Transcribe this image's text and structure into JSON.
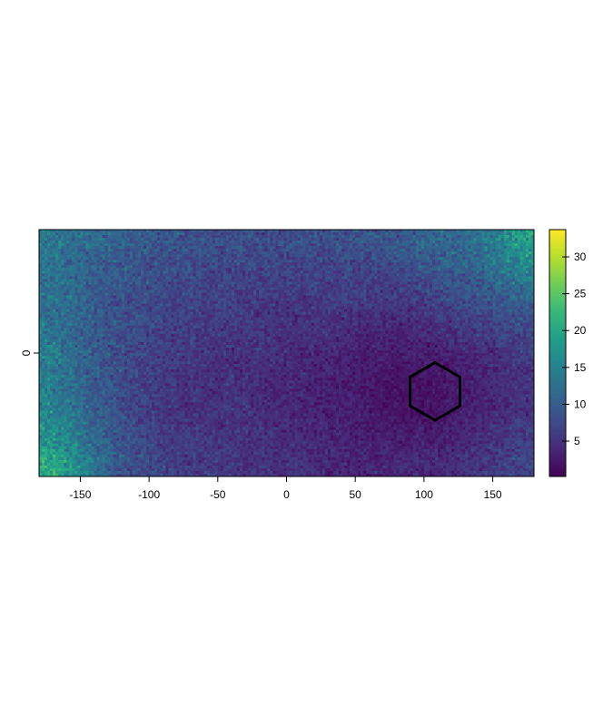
{
  "chart_data": {
    "type": "heatmap",
    "title": "",
    "xlabel": "",
    "ylabel": "",
    "xlim": [
      -180,
      180
    ],
    "ylim": [
      -90,
      90
    ],
    "zlim": [
      0.2,
      33.7
    ],
    "colormap": "viridis",
    "x_ticks": [
      -150,
      -100,
      -50,
      0,
      50,
      100,
      150
    ],
    "x_tick_labels": [
      "-150",
      "-100",
      "-50",
      "0",
      "50",
      "100",
      "150"
    ],
    "y_ticks": [
      0
    ],
    "y_tick_labels": [
      "0"
    ],
    "colorbar_ticks": [
      5,
      10,
      15,
      20,
      25,
      30
    ],
    "colorbar_tick_labels": [
      "5",
      "10",
      "15",
      "20",
      "25",
      "30"
    ],
    "cell_size_deg": 2,
    "grid_x_centers": [
      -170,
      -150,
      -130,
      -110,
      -90,
      -70,
      -50,
      -30,
      -10,
      10,
      30,
      50,
      70,
      90,
      110,
      130,
      150,
      170
    ],
    "grid_y_centers": [
      80,
      60,
      40,
      20,
      0,
      -20,
      -40,
      -60,
      -80
    ],
    "approx_mean_values": [
      [
        13,
        12,
        11,
        10,
        9,
        9,
        8,
        8,
        8,
        8,
        8,
        9,
        9,
        10,
        11,
        12,
        14,
        19
      ],
      [
        13,
        11,
        10,
        9,
        8,
        8,
        7,
        7,
        7,
        7,
        7,
        7,
        7,
        8,
        9,
        10,
        12,
        15
      ],
      [
        13,
        11,
        9,
        8,
        7,
        7,
        7,
        6,
        6,
        6,
        6,
        6,
        6,
        6,
        7,
        8,
        9,
        11
      ],
      [
        13,
        11,
        9,
        8,
        7,
        6,
        6,
        6,
        5,
        5,
        5,
        4,
        4,
        4,
        5,
        6,
        7,
        8
      ],
      [
        14,
        11,
        9,
        7,
        6,
        6,
        5,
        5,
        5,
        4,
        4,
        3,
        3,
        3,
        3,
        4,
        5,
        6
      ],
      [
        14,
        11,
        9,
        7,
        6,
        5,
        5,
        5,
        4,
        4,
        3,
        3,
        2,
        2,
        2,
        3,
        4,
        5
      ],
      [
        15,
        12,
        9,
        7,
        6,
        5,
        5,
        5,
        4,
        4,
        3,
        3,
        2,
        2,
        2,
        3,
        4,
        5
      ],
      [
        17,
        13,
        10,
        8,
        6,
        6,
        5,
        5,
        5,
        4,
        4,
        3,
        3,
        3,
        3,
        4,
        5,
        6
      ],
      [
        20,
        16,
        11,
        8,
        7,
        6,
        6,
        5,
        5,
        5,
        4,
        4,
        4,
        4,
        4,
        5,
        6,
        7
      ]
    ],
    "overlay": {
      "shape": "hexagon",
      "center": [
        108,
        -28
      ],
      "radius": 21,
      "color": "#000000"
    }
  }
}
